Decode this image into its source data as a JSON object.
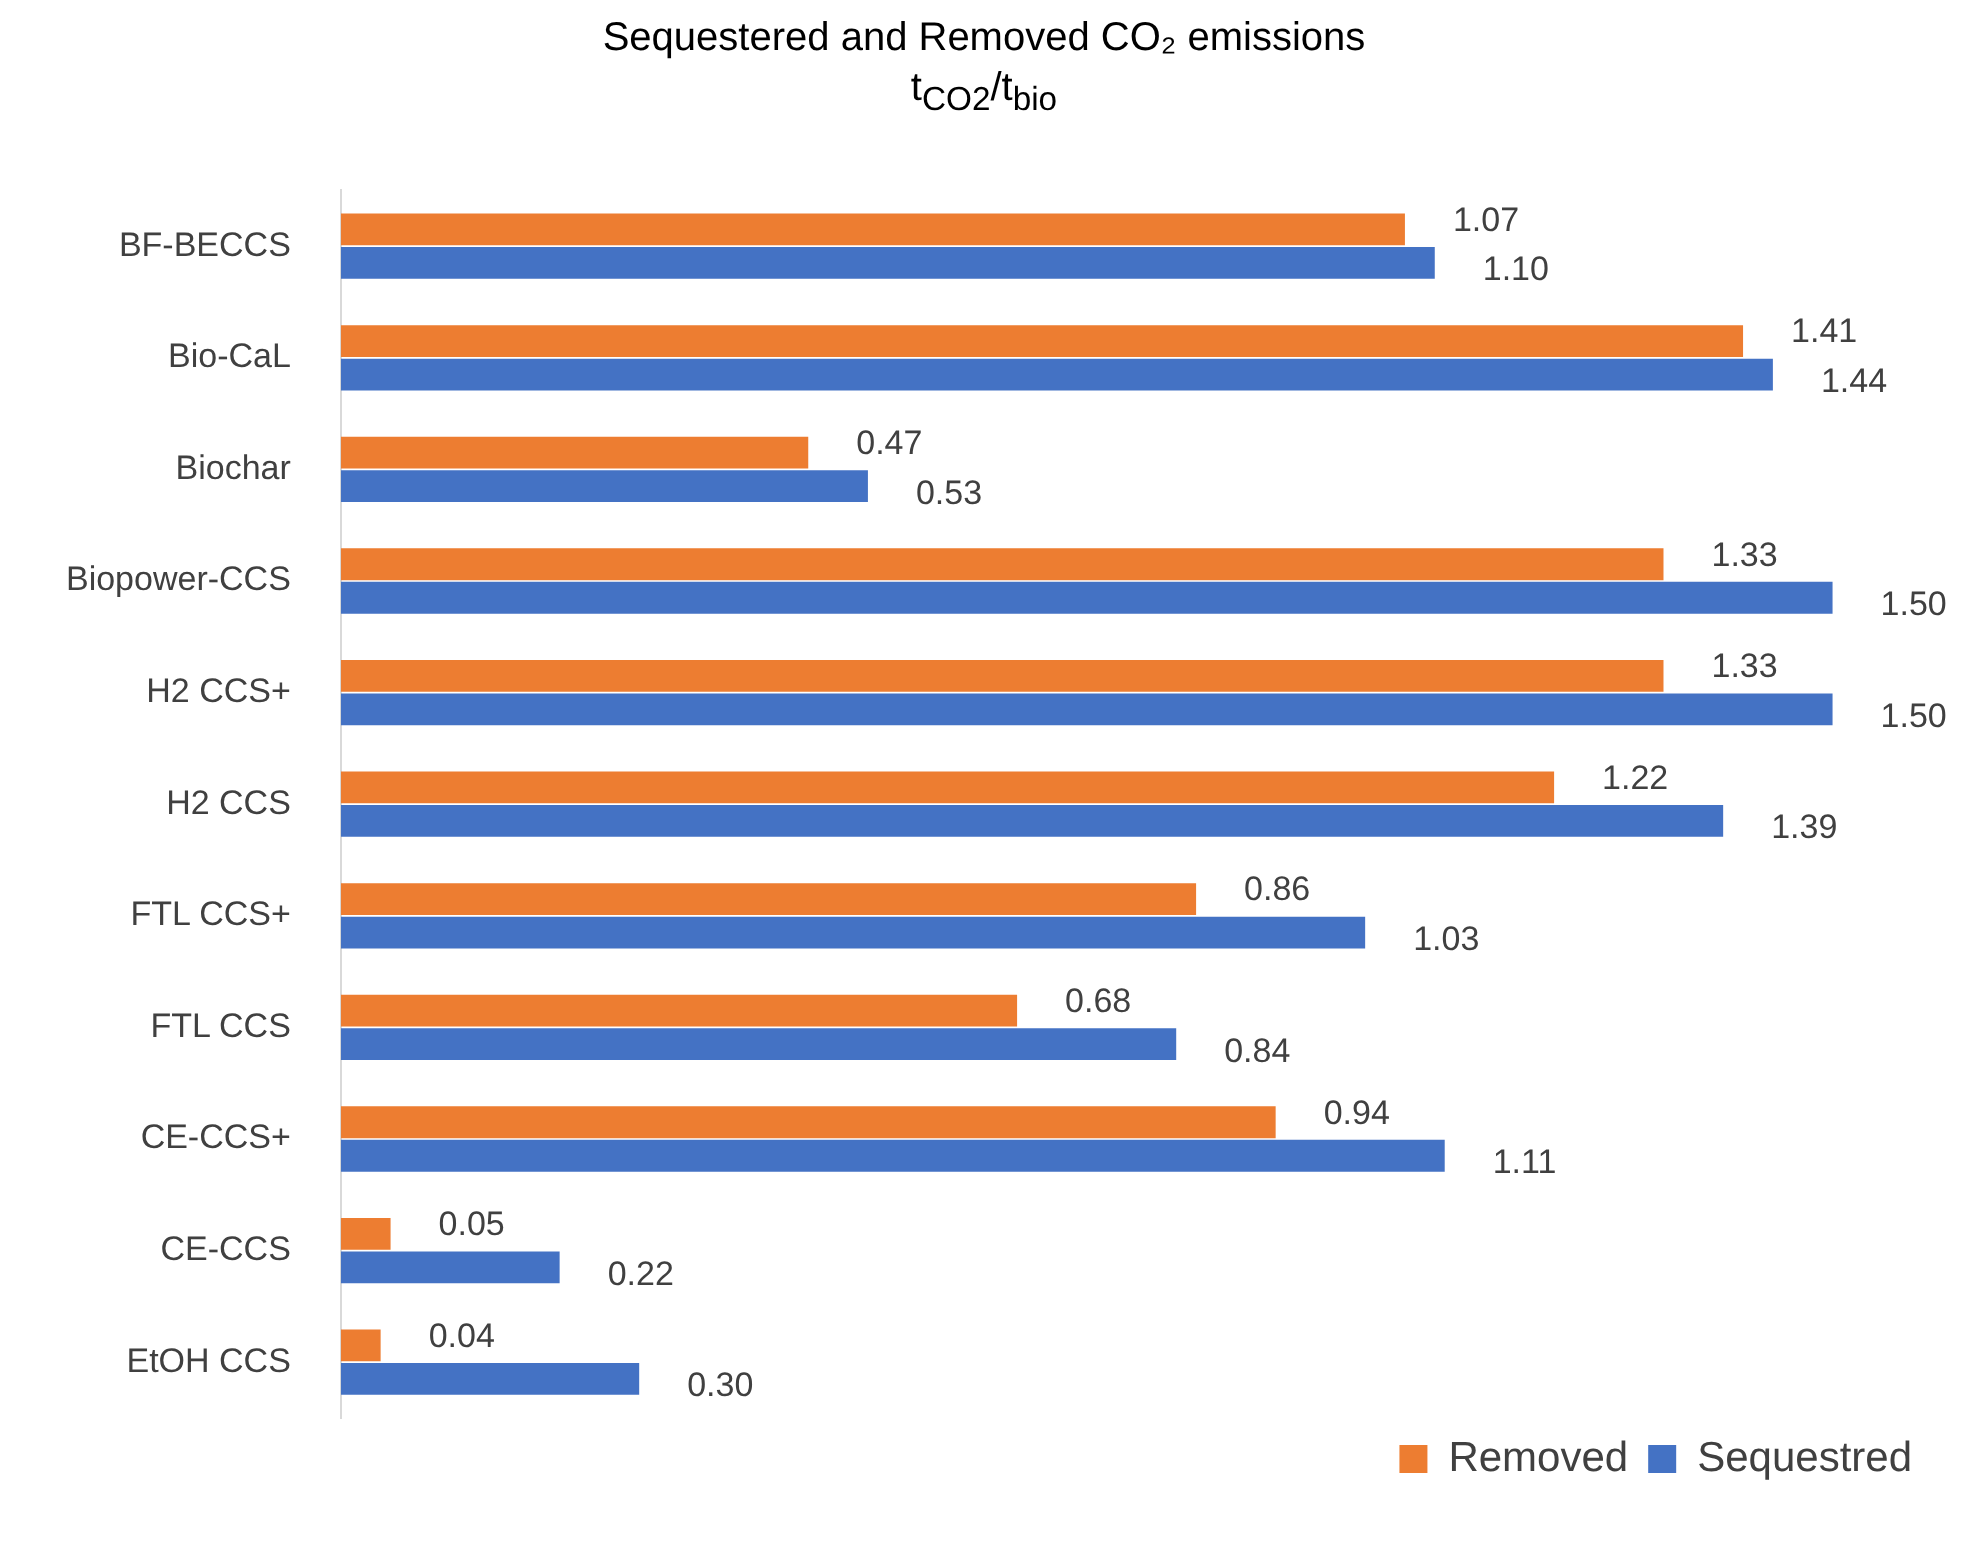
{
  "chart_data": {
    "type": "bar",
    "orientation": "horizontal",
    "title": "Sequestered and Removed CO₂ emissions",
    "subtitle": "t$_{CO2}$/t$_{bio}$",
    "categories": [
      "BF-BECCS",
      "Bio-CaL",
      "Biochar",
      "Biopower-CCS",
      "H2 CCS+",
      "H2 CCS",
      "FTL CCS+",
      "FTL CCS",
      "CE-CCS+",
      "CE-CCS",
      "EtOH CCS"
    ],
    "series": [
      {
        "name": "Removed",
        "color": "#ed7d31",
        "values": [
          1.07,
          1.41,
          0.47,
          1.33,
          1.33,
          1.22,
          0.86,
          0.68,
          0.94,
          0.05,
          0.04
        ],
        "value_labels": [
          "1.07",
          "1.41",
          "0.47",
          "1.33",
          "1.33",
          "1.22",
          "0.86",
          "0.68",
          "0.94",
          "0.05",
          "0.04"
        ]
      },
      {
        "name": "Sequestred",
        "color": "#4472c4",
        "values": [
          1.1,
          1.44,
          0.53,
          1.5,
          1.5,
          1.39,
          1.03,
          0.84,
          1.11,
          0.22,
          0.3
        ],
        "value_labels": [
          "1.10",
          "1.44",
          "0.53",
          "1.50",
          "1.50",
          "1.39",
          "1.03",
          "0.84",
          "1.11",
          "0.22",
          "0.30"
        ]
      }
    ],
    "legend": "bottom right",
    "tick_labels": "y"
  }
}
